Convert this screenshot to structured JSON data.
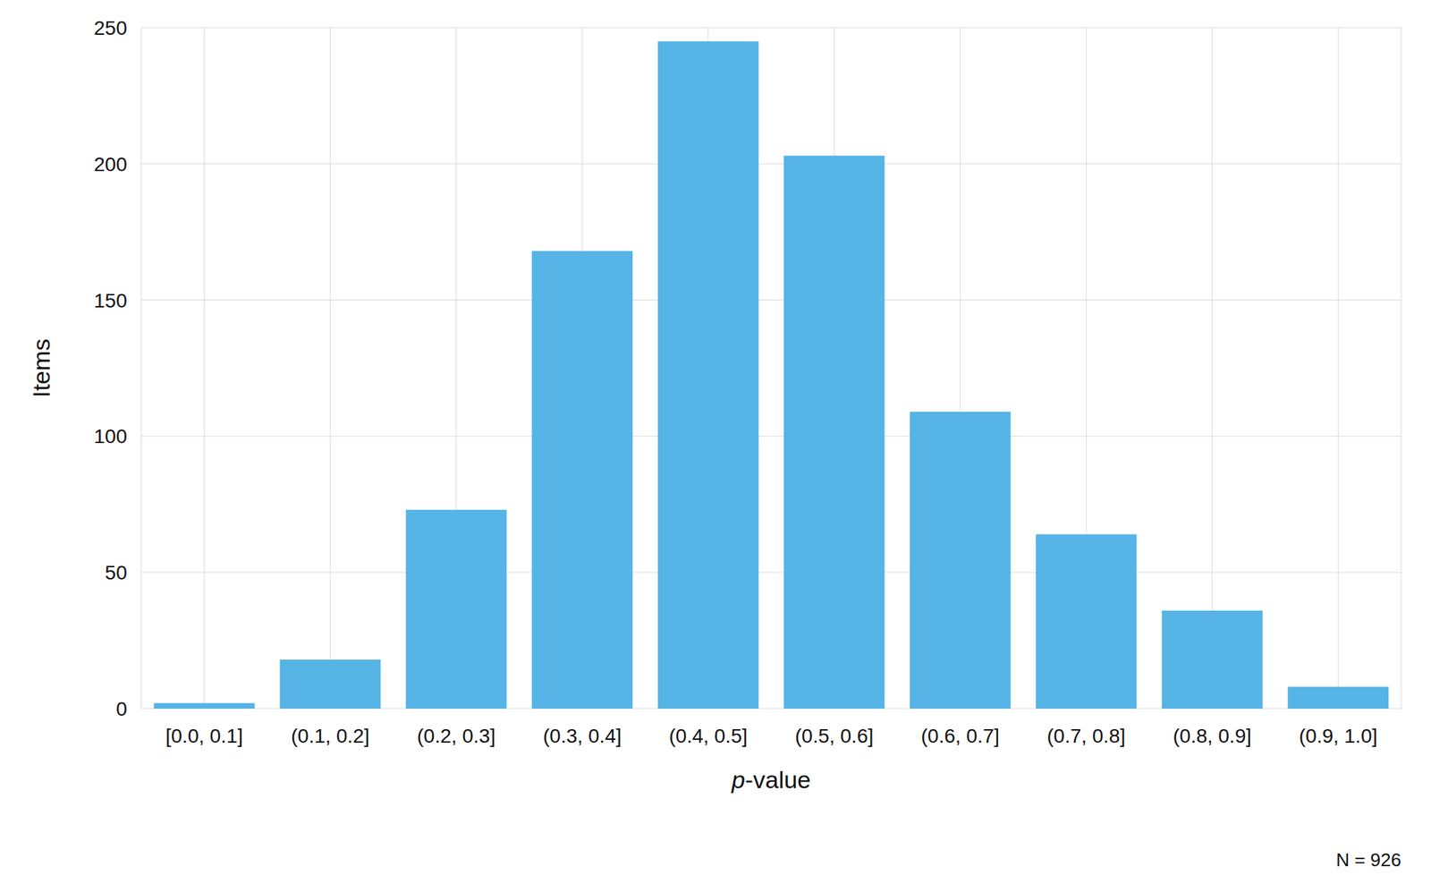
{
  "chart_data": {
    "type": "bar",
    "x_label": "p-value",
    "y_label": "Items",
    "annotation": "N = 926",
    "categories": [
      "[0.0, 0.1]",
      "(0.1, 0.2]",
      "(0.2, 0.3]",
      "(0.3, 0.4]",
      "(0.4, 0.5]",
      "(0.5, 0.6]",
      "(0.6, 0.7]",
      "(0.7, 0.8]",
      "(0.8, 0.9]",
      "(0.9, 1.0]"
    ],
    "values": [
      2,
      18,
      73,
      168,
      245,
      203,
      109,
      64,
      36,
      8
    ],
    "color": "#56b4e6",
    "ylim": [
      0,
      250
    ],
    "yticks": [
      0,
      50,
      100,
      150,
      200,
      250
    ],
    "grid": true
  }
}
